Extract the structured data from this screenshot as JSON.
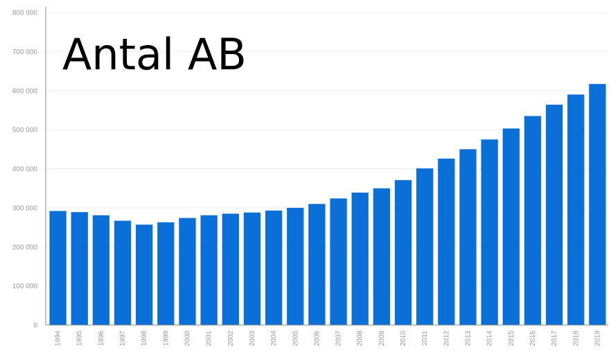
{
  "chart_data": {
    "type": "bar",
    "title": "Antal AB",
    "categories": [
      "1994",
      "1995",
      "1996",
      "1997",
      "1998",
      "1999",
      "2000",
      "2001",
      "2002",
      "2003",
      "2004",
      "2005",
      "2006",
      "2007",
      "2008",
      "2009",
      "2010",
      "2011",
      "2012",
      "2013",
      "2014",
      "2015",
      "2016",
      "2017",
      "2018",
      "2019"
    ],
    "values": [
      292000,
      289000,
      281000,
      267000,
      257000,
      263000,
      274000,
      281000,
      285000,
      288000,
      293000,
      300000,
      310000,
      324000,
      339000,
      350000,
      371000,
      401000,
      426000,
      450000,
      475000,
      503000,
      535000,
      564000,
      590000,
      617000
    ],
    "yticks": [
      "0",
      "100 000",
      "200 000",
      "300 000",
      "400 000",
      "500 000",
      "600 000",
      "700 000",
      "800 000"
    ],
    "ylim": [
      0,
      800000
    ],
    "xlabel": "",
    "ylabel": "",
    "grid": true,
    "legend": "none",
    "bar_color": "#0a6fd6",
    "axis_color": "#888888",
    "grid_color": "#eeeeee",
    "tick_color": "#9a9a9a"
  }
}
